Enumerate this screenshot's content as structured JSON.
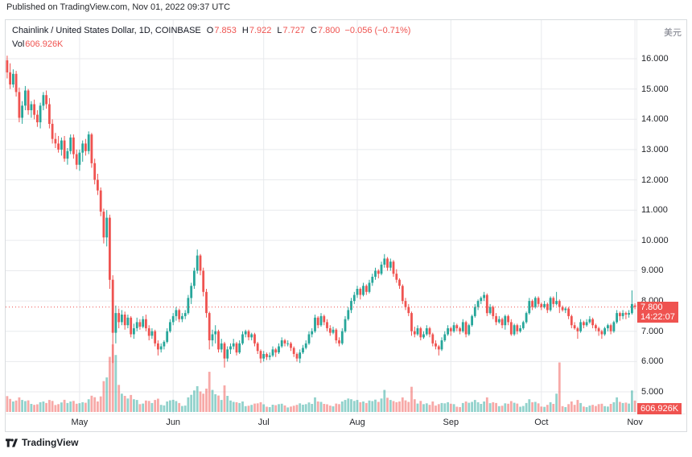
{
  "header": {
    "published": "Published on TradingView.com, Nov 01, 2022 09:37 UTC"
  },
  "legend": {
    "title": "Chainlink / United States Dollar, 1D, COINBASE",
    "o_label": "O",
    "o": "7.853",
    "h_label": "H",
    "h": "7.922",
    "l_label": "L",
    "l": "7.727",
    "c_label": "C",
    "c": "7.800",
    "change": "−0.056 (−0.71%)",
    "vol_label": "Vol",
    "vol_value": "606.926K"
  },
  "axis": {
    "currency_label": "美元",
    "price_ticks": [
      "16.000",
      "15.000",
      "14.000",
      "13.000",
      "12.000",
      "11.000",
      "10.000",
      "9.000",
      "8.000",
      "7.000",
      "6.000",
      "5.000"
    ],
    "time_ticks": [
      "May",
      "Jun",
      "Jul",
      "Aug",
      "Sep",
      "Oct",
      "Nov"
    ],
    "last_price_label": "7.800",
    "countdown": "14:22:07",
    "volume_badge": "606.926K"
  },
  "footer": {
    "brand": "TradingView"
  },
  "colors": {
    "up": "#26a69a",
    "down": "#ef5350",
    "vol_up": "rgba(38,166,154,0.5)",
    "vol_down": "rgba(239,83,80,0.5)",
    "grid": "#e8eaed",
    "badge": "#ef5350"
  },
  "chart_data": {
    "type": "candlestick",
    "title": "Chainlink / United States Dollar, 1D, COINBASE",
    "symbol": "LINK/USD",
    "exchange": "COINBASE",
    "interval": "1D",
    "start_date": "2022-04-07",
    "ylim": [
      4.6,
      17.3
    ],
    "y_ticks": [
      16,
      15,
      14,
      13,
      12,
      11,
      10,
      9,
      8,
      7,
      6,
      5
    ],
    "x_tick_labels": [
      "May",
      "Jun",
      "Jul",
      "Aug",
      "Sep",
      "Oct",
      "Nov"
    ],
    "grid": true,
    "volume_unit": "K",
    "last": {
      "open": 7.853,
      "high": 7.922,
      "low": 7.727,
      "close": 7.8,
      "change": -0.056,
      "change_pct": -0.71,
      "volume_k": 606.926
    },
    "columns": [
      "open",
      "high",
      "low",
      "close",
      "volume_k"
    ],
    "candles": [
      [
        15.95,
        16.1,
        15.35,
        15.55,
        850
      ],
      [
        15.55,
        15.85,
        15.0,
        15.15,
        700
      ],
      [
        15.15,
        15.65,
        15.05,
        15.5,
        560
      ],
      [
        15.5,
        15.6,
        14.75,
        14.9,
        610
      ],
      [
        14.9,
        15.05,
        13.9,
        14.05,
        780
      ],
      [
        14.05,
        14.6,
        13.85,
        14.45,
        640
      ],
      [
        14.45,
        15.1,
        14.3,
        14.95,
        580
      ],
      [
        14.95,
        15.0,
        14.15,
        14.3,
        620
      ],
      [
        14.3,
        14.6,
        14.05,
        14.5,
        430
      ],
      [
        14.5,
        14.65,
        14.0,
        14.15,
        380
      ],
      [
        14.15,
        14.3,
        13.75,
        13.9,
        410
      ],
      [
        13.9,
        14.55,
        13.7,
        14.45,
        520
      ],
      [
        14.45,
        14.9,
        14.3,
        14.8,
        560
      ],
      [
        14.8,
        14.95,
        14.35,
        14.5,
        480
      ],
      [
        14.5,
        14.7,
        13.7,
        13.85,
        640
      ],
      [
        13.85,
        14.0,
        13.2,
        13.35,
        590
      ],
      [
        13.35,
        13.55,
        13.05,
        13.2,
        370
      ],
      [
        13.2,
        13.45,
        12.9,
        13.0,
        420
      ],
      [
        13.0,
        13.4,
        12.8,
        13.3,
        510
      ],
      [
        13.3,
        13.45,
        12.6,
        12.7,
        650
      ],
      [
        12.7,
        13.05,
        12.5,
        12.95,
        480
      ],
      [
        12.95,
        13.5,
        12.85,
        13.4,
        560
      ],
      [
        13.4,
        13.5,
        12.7,
        12.85,
        590
      ],
      [
        12.85,
        13.0,
        12.35,
        12.5,
        440
      ],
      [
        12.5,
        13.0,
        12.3,
        12.9,
        470
      ],
      [
        12.9,
        13.3,
        12.6,
        13.2,
        520
      ],
      [
        13.2,
        13.35,
        12.8,
        12.95,
        490
      ],
      [
        12.95,
        13.6,
        12.85,
        13.5,
        680
      ],
      [
        13.5,
        13.55,
        12.4,
        12.55,
        870
      ],
      [
        12.55,
        12.7,
        11.85,
        12.0,
        790
      ],
      [
        12.0,
        12.2,
        11.5,
        11.65,
        560
      ],
      [
        11.65,
        11.75,
        10.8,
        10.95,
        830
      ],
      [
        10.95,
        11.05,
        9.9,
        10.1,
        1650
      ],
      [
        10.1,
        11.0,
        9.8,
        10.75,
        1850
      ],
      [
        10.75,
        10.85,
        8.4,
        8.7,
        2950
      ],
      [
        8.7,
        8.85,
        5.95,
        6.95,
        3620
      ],
      [
        6.95,
        7.85,
        6.6,
        7.6,
        3050
      ],
      [
        7.6,
        7.75,
        7.1,
        7.3,
        1450
      ],
      [
        7.3,
        7.7,
        7.2,
        7.55,
        980
      ],
      [
        7.55,
        7.65,
        7.05,
        7.2,
        860
      ],
      [
        7.2,
        7.55,
        7.1,
        7.45,
        720
      ],
      [
        7.45,
        7.5,
        6.8,
        6.9,
        910
      ],
      [
        6.9,
        7.25,
        6.75,
        7.1,
        680
      ],
      [
        7.1,
        7.45,
        7.0,
        7.3,
        640
      ],
      [
        7.3,
        7.4,
        7.05,
        7.15,
        420
      ],
      [
        7.15,
        7.5,
        7.1,
        7.4,
        450
      ],
      [
        7.4,
        7.55,
        7.0,
        7.1,
        610
      ],
      [
        7.1,
        7.2,
        6.7,
        6.85,
        590
      ],
      [
        6.85,
        7.1,
        6.75,
        7.0,
        480
      ],
      [
        7.0,
        7.05,
        6.5,
        6.6,
        640
      ],
      [
        6.6,
        6.7,
        6.2,
        6.4,
        710
      ],
      [
        6.4,
        6.6,
        6.3,
        6.5,
        380
      ],
      [
        6.5,
        6.7,
        6.4,
        6.65,
        350
      ],
      [
        6.65,
        7.1,
        6.6,
        7.0,
        560
      ],
      [
        7.0,
        7.4,
        6.95,
        7.3,
        620
      ],
      [
        7.3,
        7.6,
        7.2,
        7.5,
        650
      ],
      [
        7.5,
        7.8,
        7.35,
        7.7,
        580
      ],
      [
        7.7,
        7.75,
        7.3,
        7.4,
        480
      ],
      [
        7.4,
        7.6,
        7.3,
        7.5,
        320
      ],
      [
        7.5,
        7.7,
        7.4,
        7.6,
        340
      ],
      [
        7.6,
        8.2,
        7.55,
        8.1,
        780
      ],
      [
        8.1,
        8.6,
        7.9,
        8.5,
        920
      ],
      [
        8.5,
        9.1,
        8.4,
        9.0,
        1150
      ],
      [
        9.0,
        9.7,
        8.9,
        9.5,
        1380
      ],
      [
        9.5,
        9.55,
        8.85,
        9.0,
        1100
      ],
      [
        9.0,
        9.1,
        8.15,
        8.3,
        980
      ],
      [
        8.3,
        8.4,
        7.45,
        7.6,
        1250
      ],
      [
        7.6,
        7.65,
        6.4,
        6.7,
        2150
      ],
      [
        6.7,
        7.05,
        6.5,
        6.9,
        1180
      ],
      [
        6.9,
        7.2,
        6.6,
        7.0,
        950
      ],
      [
        7.0,
        7.05,
        6.3,
        6.4,
        880
      ],
      [
        6.4,
        6.75,
        6.3,
        6.6,
        640
      ],
      [
        6.6,
        6.65,
        5.8,
        6.1,
        1420
      ],
      [
        6.1,
        6.5,
        6.0,
        6.4,
        860
      ],
      [
        6.4,
        6.6,
        6.25,
        6.5,
        610
      ],
      [
        6.5,
        6.75,
        6.4,
        6.6,
        540
      ],
      [
        6.6,
        6.65,
        6.2,
        6.3,
        520
      ],
      [
        6.3,
        6.7,
        6.25,
        6.6,
        480
      ],
      [
        6.6,
        7.0,
        6.55,
        6.9,
        560
      ],
      [
        6.9,
        7.05,
        6.8,
        7.0,
        310
      ],
      [
        7.0,
        7.05,
        6.7,
        6.8,
        330
      ],
      [
        6.8,
        6.95,
        6.7,
        6.9,
        380
      ],
      [
        6.9,
        6.95,
        6.5,
        6.6,
        450
      ],
      [
        6.6,
        6.65,
        6.25,
        6.35,
        460
      ],
      [
        6.35,
        6.4,
        5.95,
        6.1,
        520
      ],
      [
        6.1,
        6.35,
        6.0,
        6.25,
        410
      ],
      [
        6.25,
        6.3,
        6.05,
        6.15,
        280
      ],
      [
        6.15,
        6.3,
        6.05,
        6.2,
        260
      ],
      [
        6.2,
        6.5,
        6.15,
        6.4,
        390
      ],
      [
        6.4,
        6.45,
        6.15,
        6.3,
        360
      ],
      [
        6.3,
        6.6,
        6.25,
        6.5,
        420
      ],
      [
        6.5,
        6.8,
        6.45,
        6.7,
        440
      ],
      [
        6.7,
        6.75,
        6.5,
        6.6,
        350
      ],
      [
        6.6,
        6.7,
        6.5,
        6.6,
        240
      ],
      [
        6.6,
        6.65,
        6.35,
        6.45,
        290
      ],
      [
        6.45,
        6.5,
        6.15,
        6.25,
        330
      ],
      [
        6.25,
        6.3,
        6.0,
        6.1,
        380
      ],
      [
        6.1,
        6.4,
        5.95,
        6.3,
        460
      ],
      [
        6.3,
        6.55,
        6.25,
        6.45,
        390
      ],
      [
        6.45,
        6.7,
        6.4,
        6.6,
        420
      ],
      [
        6.6,
        7.0,
        6.55,
        6.9,
        510
      ],
      [
        6.9,
        7.1,
        6.8,
        7.0,
        430
      ],
      [
        7.0,
        7.55,
        6.95,
        7.45,
        780
      ],
      [
        7.45,
        7.5,
        7.1,
        7.2,
        560
      ],
      [
        7.2,
        7.6,
        7.15,
        7.5,
        540
      ],
      [
        7.5,
        7.55,
        7.2,
        7.3,
        430
      ],
      [
        7.3,
        7.4,
        7.0,
        7.1,
        410
      ],
      [
        7.1,
        7.2,
        6.85,
        6.95,
        340
      ],
      [
        6.95,
        7.15,
        6.9,
        7.05,
        300
      ],
      [
        7.05,
        7.1,
        6.6,
        6.7,
        450
      ],
      [
        6.7,
        6.8,
        6.5,
        6.6,
        420
      ],
      [
        6.6,
        7.1,
        6.55,
        7.0,
        560
      ],
      [
        7.0,
        7.5,
        6.95,
        7.4,
        640
      ],
      [
        7.4,
        7.8,
        7.35,
        7.7,
        720
      ],
      [
        7.7,
        8.1,
        7.6,
        8.0,
        680
      ],
      [
        8.0,
        8.3,
        7.9,
        8.2,
        590
      ],
      [
        8.2,
        8.5,
        8.1,
        8.4,
        640
      ],
      [
        8.4,
        8.45,
        8.05,
        8.2,
        520
      ],
      [
        8.2,
        8.6,
        8.15,
        8.5,
        560
      ],
      [
        8.5,
        8.55,
        8.2,
        8.3,
        480
      ],
      [
        8.3,
        8.7,
        8.25,
        8.6,
        610
      ],
      [
        8.6,
        8.9,
        8.5,
        8.8,
        580
      ],
      [
        8.8,
        9.1,
        8.7,
        9.0,
        660
      ],
      [
        9.0,
        9.05,
        8.75,
        8.9,
        540
      ],
      [
        8.9,
        9.3,
        8.85,
        9.2,
        720
      ],
      [
        9.2,
        9.55,
        9.1,
        9.4,
        1180
      ],
      [
        9.4,
        9.45,
        9.0,
        9.1,
        760
      ],
      [
        9.1,
        9.4,
        9.0,
        9.3,
        640
      ],
      [
        9.3,
        9.35,
        8.8,
        8.9,
        580
      ],
      [
        8.9,
        9.05,
        8.6,
        8.7,
        520
      ],
      [
        8.7,
        8.75,
        8.4,
        8.5,
        560
      ],
      [
        8.5,
        8.55,
        7.9,
        8.0,
        780
      ],
      [
        8.0,
        8.1,
        7.7,
        7.8,
        620
      ],
      [
        7.8,
        7.9,
        7.5,
        7.6,
        540
      ],
      [
        7.6,
        7.65,
        6.85,
        7.0,
        1350
      ],
      [
        7.0,
        7.15,
        6.8,
        6.9,
        680
      ],
      [
        6.9,
        7.2,
        6.85,
        7.1,
        450
      ],
      [
        7.1,
        7.15,
        6.7,
        6.8,
        590
      ],
      [
        6.8,
        7.0,
        6.75,
        6.9,
        420
      ],
      [
        6.9,
        7.2,
        6.85,
        7.1,
        460
      ],
      [
        7.1,
        7.15,
        6.8,
        6.9,
        380
      ],
      [
        6.9,
        6.95,
        6.5,
        6.6,
        560
      ],
      [
        6.6,
        6.7,
        6.4,
        6.5,
        340
      ],
      [
        6.5,
        6.55,
        6.2,
        6.4,
        420
      ],
      [
        6.4,
        6.8,
        6.35,
        6.7,
        480
      ],
      [
        6.7,
        7.0,
        6.65,
        6.9,
        460
      ],
      [
        6.9,
        7.2,
        6.85,
        7.1,
        520
      ],
      [
        7.1,
        7.15,
        6.85,
        7.0,
        440
      ],
      [
        7.0,
        7.3,
        6.95,
        7.2,
        420
      ],
      [
        7.2,
        7.25,
        7.0,
        7.1,
        280
      ],
      [
        7.1,
        7.15,
        6.9,
        7.0,
        260
      ],
      [
        7.0,
        7.4,
        6.95,
        7.3,
        480
      ],
      [
        7.3,
        7.35,
        6.8,
        6.9,
        560
      ],
      [
        6.9,
        7.25,
        6.85,
        7.2,
        490
      ],
      [
        7.2,
        7.55,
        7.15,
        7.5,
        540
      ],
      [
        7.5,
        7.9,
        7.45,
        7.8,
        640
      ],
      [
        7.8,
        8.05,
        7.7,
        8.0,
        520
      ],
      [
        8.0,
        8.15,
        7.9,
        8.1,
        430
      ],
      [
        8.1,
        8.3,
        8.0,
        8.2,
        560
      ],
      [
        8.2,
        8.25,
        7.5,
        7.6,
        780
      ],
      [
        7.6,
        7.9,
        7.55,
        7.8,
        470
      ],
      [
        7.8,
        7.85,
        7.4,
        7.5,
        520
      ],
      [
        7.5,
        7.6,
        7.2,
        7.3,
        480
      ],
      [
        7.3,
        7.5,
        7.25,
        7.4,
        310
      ],
      [
        7.4,
        7.45,
        7.1,
        7.2,
        330
      ],
      [
        7.2,
        7.55,
        7.05,
        7.5,
        460
      ],
      [
        7.5,
        7.55,
        7.2,
        7.3,
        440
      ],
      [
        7.3,
        7.4,
        6.85,
        6.9,
        580
      ],
      [
        6.9,
        7.25,
        6.85,
        7.2,
        490
      ],
      [
        7.2,
        7.25,
        6.9,
        7.0,
        450
      ],
      [
        7.0,
        7.2,
        6.95,
        7.1,
        280
      ],
      [
        7.1,
        7.35,
        7.05,
        7.3,
        320
      ],
      [
        7.3,
        7.65,
        7.25,
        7.6,
        480
      ],
      [
        7.6,
        8.1,
        7.55,
        8.0,
        680
      ],
      [
        8.0,
        8.05,
        7.7,
        7.8,
        520
      ],
      [
        7.8,
        8.15,
        7.75,
        8.1,
        540
      ],
      [
        8.1,
        8.15,
        7.8,
        7.9,
        460
      ],
      [
        7.9,
        7.95,
        7.7,
        7.8,
        290
      ],
      [
        7.8,
        8.0,
        7.75,
        7.9,
        270
      ],
      [
        7.9,
        7.95,
        7.6,
        7.7,
        380
      ],
      [
        7.7,
        8.15,
        7.65,
        8.1,
        520
      ],
      [
        8.1,
        8.15,
        7.8,
        7.9,
        430
      ],
      [
        7.9,
        8.3,
        7.85,
        8.0,
        980
      ],
      [
        8.0,
        8.05,
        7.6,
        7.8,
        2650
      ],
      [
        7.8,
        7.85,
        7.65,
        7.7,
        310
      ],
      [
        7.7,
        7.8,
        7.6,
        7.75,
        260
      ],
      [
        7.75,
        7.8,
        7.4,
        7.5,
        420
      ],
      [
        7.5,
        7.55,
        7.1,
        7.2,
        560
      ],
      [
        7.2,
        7.3,
        7.05,
        7.1,
        380
      ],
      [
        7.1,
        7.15,
        6.75,
        7.0,
        640
      ],
      [
        7.0,
        7.4,
        6.95,
        7.3,
        480
      ],
      [
        7.3,
        7.35,
        7.1,
        7.2,
        290
      ],
      [
        7.2,
        7.4,
        7.15,
        7.3,
        260
      ],
      [
        7.3,
        7.5,
        7.25,
        7.4,
        340
      ],
      [
        7.4,
        7.45,
        7.1,
        7.2,
        380
      ],
      [
        7.2,
        7.25,
        7.0,
        7.1,
        320
      ],
      [
        7.1,
        7.15,
        6.85,
        7.0,
        420
      ],
      [
        7.0,
        7.05,
        6.75,
        6.9,
        440
      ],
      [
        6.9,
        7.15,
        6.85,
        7.1,
        310
      ],
      [
        7.1,
        7.25,
        7.0,
        7.2,
        290
      ],
      [
        7.2,
        7.25,
        6.9,
        7.0,
        430
      ],
      [
        7.0,
        7.35,
        6.95,
        7.3,
        520
      ],
      [
        7.3,
        7.7,
        7.25,
        7.6,
        780
      ],
      [
        7.6,
        7.65,
        7.35,
        7.5,
        540
      ],
      [
        7.5,
        7.7,
        7.4,
        7.6,
        480
      ],
      [
        7.6,
        7.65,
        7.4,
        7.55,
        500
      ],
      [
        7.55,
        7.7,
        7.45,
        7.6,
        450
      ],
      [
        7.6,
        8.35,
        7.55,
        7.9,
        1150
      ],
      [
        7.853,
        7.922,
        7.727,
        7.8,
        607
      ]
    ]
  }
}
